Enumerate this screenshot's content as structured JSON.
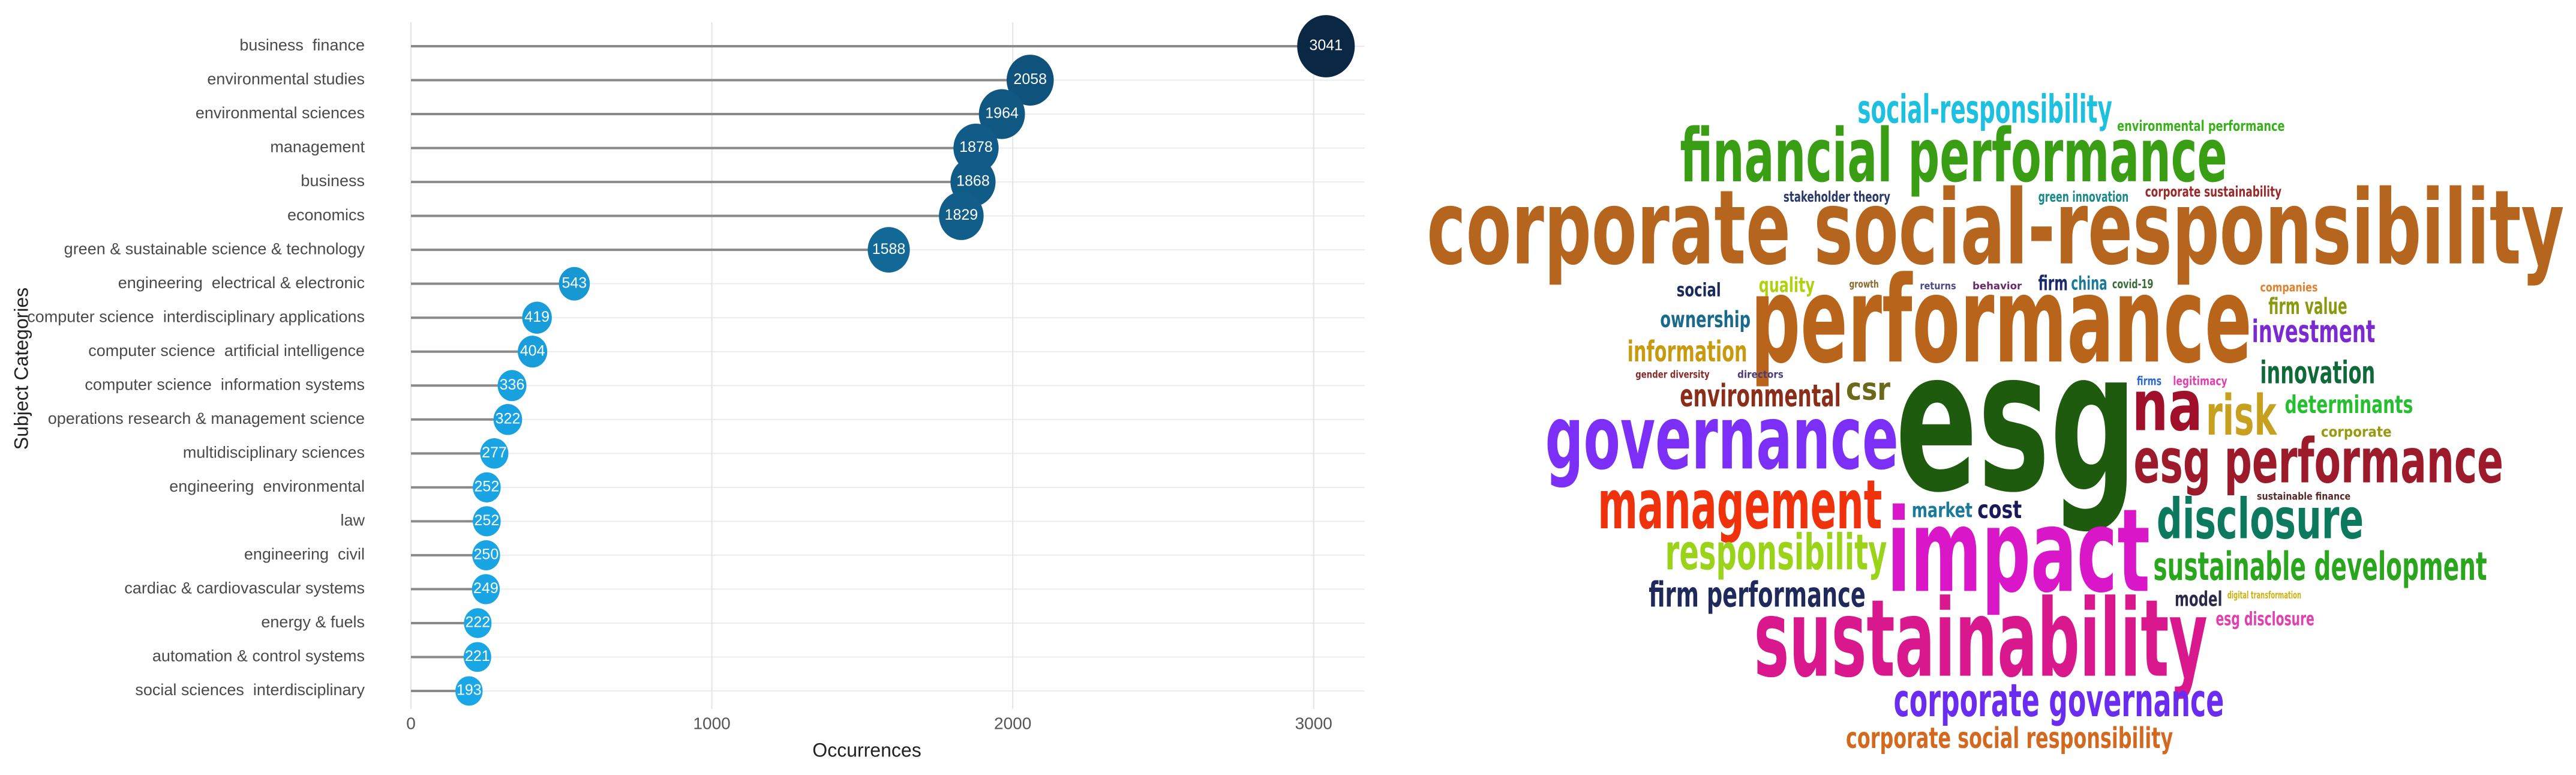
{
  "chart_data": [
    {
      "type": "lollipop",
      "x_label": "Occurrences",
      "y_label": "Subject Categories",
      "categories": [
        "business  finance",
        "environmental studies",
        "environmental sciences",
        "management",
        "business",
        "economics",
        "green & sustainable science & technology",
        "engineering  electrical & electronic",
        "computer science  interdisciplinary applications",
        "computer science  artificial intelligence",
        "computer science  information systems",
        "operations research & management science",
        "multidisciplinary sciences",
        "engineering  environmental",
        "law",
        "engineering  civil",
        "cardiac & cardiovascular systems",
        "energy & fuels",
        "automation & control systems",
        "social sciences  interdisciplinary"
      ],
      "values": [
        3041,
        2058,
        1964,
        1878,
        1868,
        1829,
        1588,
        543,
        419,
        404,
        336,
        322,
        277,
        252,
        252,
        250,
        249,
        222,
        221,
        193
      ],
      "xlim": [
        0,
        3170
      ],
      "xticks": [
        0,
        1000,
        2000,
        3000
      ],
      "grid": true,
      "stem_color": "#8a8a8a",
      "color_low": "#1ab0f2",
      "color_high": "#0a2744"
    },
    {
      "type": "wordcloud",
      "words": [
        {
          "text": "corporate social-responsibility",
          "color": "#b5651d"
        },
        {
          "text": "esg",
          "color": "#1e5b0e"
        },
        {
          "text": "performance",
          "color": "#b8641a"
        },
        {
          "text": "impact",
          "color": "#d916c8"
        },
        {
          "text": "sustainability",
          "color": "#d8188c"
        },
        {
          "text": "governance",
          "color": "#7b2ff7"
        },
        {
          "text": "financial performance",
          "color": "#3a9e14"
        },
        {
          "text": "management",
          "color": "#f0320c"
        },
        {
          "text": "esg performance",
          "color": "#9c1a2a"
        },
        {
          "text": "disclosure",
          "color": "#0d7a5f"
        },
        {
          "text": "sustainable development",
          "color": "#2aa51e"
        },
        {
          "text": "corporate governance",
          "color": "#6a2cf0"
        },
        {
          "text": "corporate social responsibility",
          "color": "#d2691e"
        },
        {
          "text": "responsibility",
          "color": "#9ad31a"
        },
        {
          "text": "firm performance",
          "color": "#1f2a5a"
        },
        {
          "text": "na",
          "color": "#a0102a"
        },
        {
          "text": "risk",
          "color": "#c8a020"
        },
        {
          "text": "social-responsibility",
          "color": "#1ec0e0"
        },
        {
          "text": "environmental performance",
          "color": "#3ab01a"
        },
        {
          "text": "innovation",
          "color": "#0f6a3a"
        },
        {
          "text": "determinants",
          "color": "#25c030"
        },
        {
          "text": "investment",
          "color": "#7a2ad0"
        },
        {
          "text": "firm value",
          "color": "#8a9a10"
        },
        {
          "text": "environmental",
          "color": "#8a2e1a"
        },
        {
          "text": "csr",
          "color": "#6a6a1a"
        },
        {
          "text": "information",
          "color": "#c89a10"
        },
        {
          "text": "ownership",
          "color": "#1a6a8a"
        },
        {
          "text": "quality",
          "color": "#b0d010"
        },
        {
          "text": "social",
          "color": "#1a2a5a"
        },
        {
          "text": "market",
          "color": "#1a7a9a"
        },
        {
          "text": "cost",
          "color": "#1a1a5a"
        },
        {
          "text": "model",
          "color": "#2a2a4a"
        },
        {
          "text": "esg disclosure",
          "color": "#e040b0"
        },
        {
          "text": "stakeholder theory",
          "color": "#2a3a6a"
        },
        {
          "text": "green innovation",
          "color": "#1a8a8a"
        },
        {
          "text": "corporate sustainability",
          "color": "#9a2a2a"
        },
        {
          "text": "firm",
          "color": "#1a2a6a"
        },
        {
          "text": "china",
          "color": "#1a7a9a"
        },
        {
          "text": "covid-19",
          "color": "#3a6a3a"
        },
        {
          "text": "companies",
          "color": "#e08030"
        },
        {
          "text": "corporate",
          "color": "#9a9a10"
        },
        {
          "text": "gender diversity",
          "color": "#8a2a2a"
        },
        {
          "text": "directors",
          "color": "#4a3a7a"
        },
        {
          "text": "legitimacy",
          "color": "#e040b0"
        },
        {
          "text": "firms",
          "color": "#2a6ad0"
        },
        {
          "text": "sustainable finance",
          "color": "#5a2a2a"
        },
        {
          "text": "digital transformation",
          "color": "#d0b010"
        },
        {
          "text": "growth",
          "color": "#8a6a2a"
        },
        {
          "text": "returns",
          "color": "#4a4a8a"
        },
        {
          "text": "behavior",
          "color": "#6a2a6a"
        }
      ]
    }
  ]
}
